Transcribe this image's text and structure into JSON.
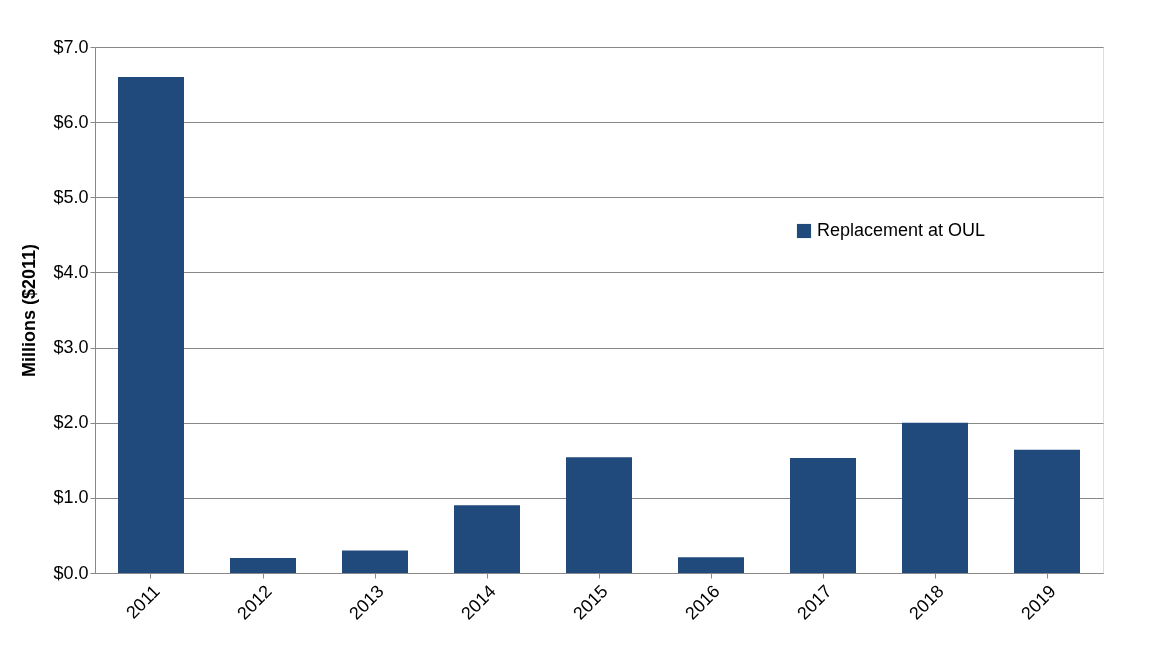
{
  "chart_data": {
    "type": "bar",
    "ylabel": "Millions  ($2011)",
    "categories": [
      "2011",
      "2012",
      "2013",
      "2014",
      "2015",
      "2016",
      "2017",
      "2018",
      "2019"
    ],
    "series": [
      {
        "name": "Replacement at OUL",
        "color": "#214a7c",
        "values": [
          6.6,
          0.2,
          0.3,
          0.9,
          1.54,
          0.21,
          1.53,
          2.0,
          1.64
        ]
      }
    ],
    "ylim": [
      0,
      7
    ],
    "yticks": [
      {
        "value": 0,
        "label": "$0.0"
      },
      {
        "value": 1,
        "label": "$1.0"
      },
      {
        "value": 2,
        "label": "$2.0"
      },
      {
        "value": 3,
        "label": "$3.0"
      },
      {
        "value": 4,
        "label": "$4.0"
      },
      {
        "value": 5,
        "label": "$5.0"
      },
      {
        "value": 6,
        "label": "$6.0"
      },
      {
        "value": 7,
        "label": "$7.0"
      }
    ],
    "grid": "y",
    "legend": "right"
  }
}
